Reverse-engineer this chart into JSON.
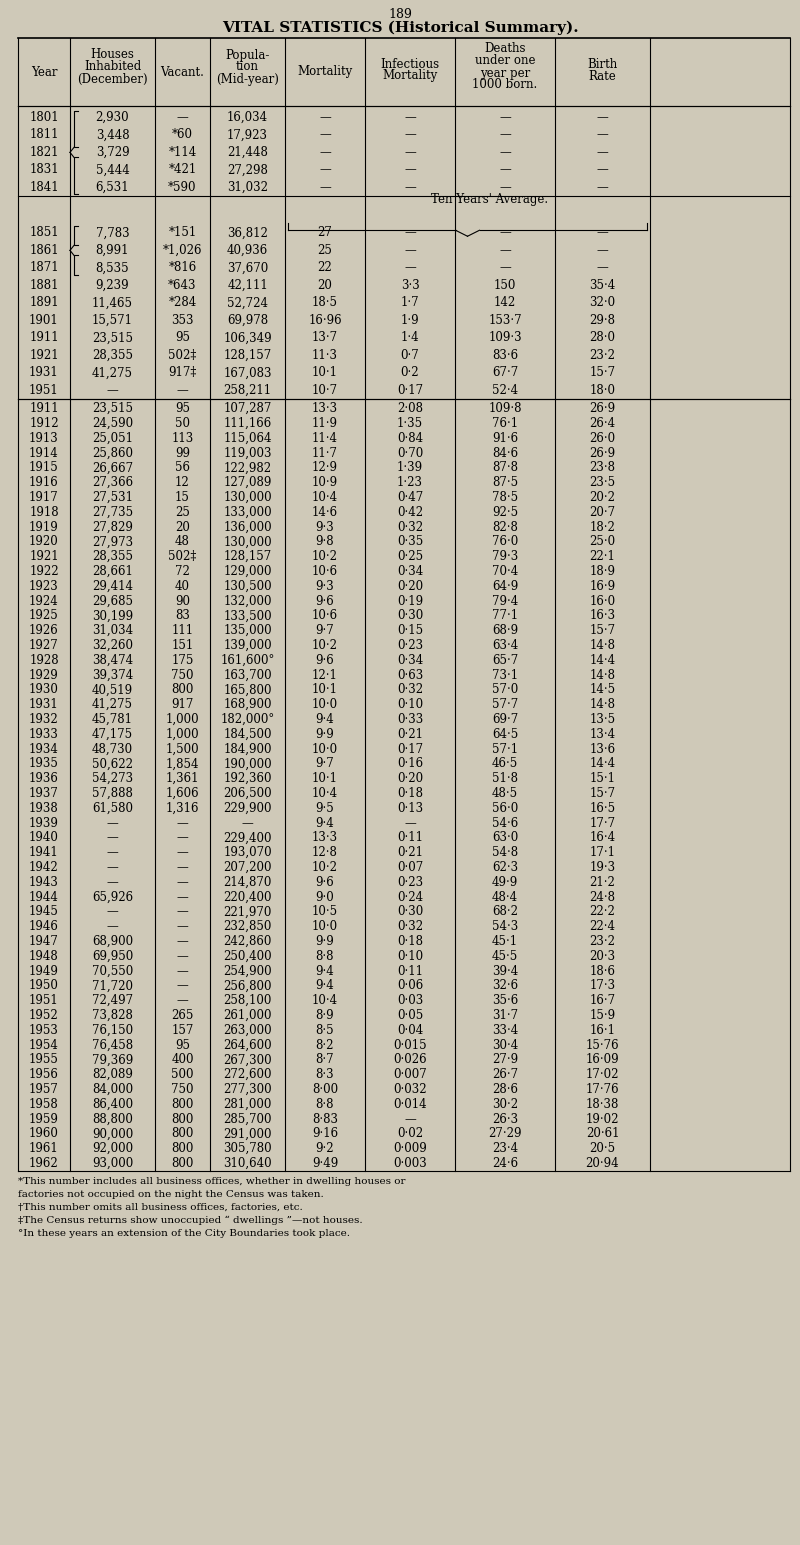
{
  "page_number": "189",
  "title": "VITAL STATISTICS (Historical Summary).",
  "bg_color": "#cfc9b8",
  "col_bounds": [
    18,
    70,
    155,
    210,
    285,
    365,
    455,
    555,
    650,
    790
  ],
  "header_lines": [
    [
      0,
      "Year"
    ],
    [
      1,
      "Houses\nInhabited\n(December)"
    ],
    [
      2,
      "Vacant."
    ],
    [
      3,
      "Popula-\ntion\n(Mid-year)"
    ],
    [
      4,
      "Mortality"
    ],
    [
      5,
      "Infectious\nMortality"
    ],
    [
      6,
      "Deaths\nunder one\nyear per\n1000 born."
    ],
    [
      7,
      "Birth\nRate"
    ]
  ],
  "dec_rows": [
    [
      "1801",
      "2,930",
      "—",
      "16,034",
      "—",
      "—",
      "—",
      "—"
    ],
    [
      "1811",
      "3,448",
      "*60",
      "17,923",
      "—",
      "—",
      "—",
      "—"
    ],
    [
      "1821",
      "3,729",
      "*114",
      "21,448",
      "—",
      "—",
      "—",
      "—"
    ],
    [
      "1831",
      "5,444",
      "*421",
      "27,298",
      "—",
      "—",
      "—",
      "—"
    ],
    [
      "1841",
      "6,531",
      "*590",
      "31,032",
      "—",
      "—",
      "—",
      "—"
    ],
    [
      "1851",
      "7,783",
      "*151",
      "36,812",
      "27",
      "—",
      "—",
      "—"
    ],
    [
      "1861",
      "8,991",
      "*1,026",
      "40,936",
      "25",
      "—",
      "—",
      "—"
    ],
    [
      "1871",
      "8,535",
      "*816",
      "37,670",
      "22",
      "—",
      "—",
      "—"
    ],
    [
      "1881",
      "9,239",
      "*643",
      "42,111",
      "20",
      "3·3",
      "150",
      "35·4"
    ],
    [
      "1891",
      "11,465",
      "*284",
      "52,724",
      "18·5",
      "1·7",
      "142",
      "32·0"
    ],
    [
      "1901",
      "15,571",
      "353",
      "69,978",
      "16·96",
      "1·9",
      "153·7",
      "29·8"
    ],
    [
      "1911",
      "23,515",
      "95",
      "106,349",
      "13·7",
      "1·4",
      "109·3",
      "28·0"
    ],
    [
      "1921",
      "28,355",
      "502‡",
      "128,157",
      "11·3",
      "0·7",
      "83·6",
      "23·2"
    ],
    [
      "1931",
      "41,275",
      "917‡",
      "167,083",
      "10·1",
      "0·2",
      "67·7",
      "15·7"
    ],
    [
      "1951",
      "—",
      "—",
      "258,211",
      "10·7",
      "0·17",
      "52·4",
      "18·0"
    ]
  ],
  "ann_rows": [
    [
      "1911",
      "23,515",
      "95",
      "107,287",
      "13·3",
      "2·08",
      "109·8",
      "26·9"
    ],
    [
      "1912",
      "24,590",
      "50",
      "111,166",
      "11·9",
      "1·35",
      "76·1",
      "26·4"
    ],
    [
      "1913",
      "25,051",
      "113",
      "115,064",
      "11·4",
      "0·84",
      "91·6",
      "26·0"
    ],
    [
      "1914",
      "25,860",
      "99",
      "119,003",
      "11·7",
      "0·70",
      "84·6",
      "26·9"
    ],
    [
      "1915",
      "26,667",
      "56",
      "122,982",
      "12·9",
      "1·39",
      "87·8",
      "23·8"
    ],
    [
      "1916",
      "27,366",
      "12",
      "127,089",
      "10·9",
      "1·23",
      "87·5",
      "23·5"
    ],
    [
      "1917",
      "27,531",
      "15",
      "130,000",
      "10·4",
      "0·47",
      "78·5",
      "20·2"
    ],
    [
      "1918",
      "27,735",
      "25",
      "133,000",
      "14·6",
      "0·42",
      "92·5",
      "20·7"
    ],
    [
      "1919",
      "27,829",
      "20",
      "136,000",
      "9·3",
      "0·32",
      "82·8",
      "18·2"
    ],
    [
      "1920",
      "27,973",
      "48",
      "130,000",
      "9·8",
      "0·35",
      "76·0",
      "25·0"
    ],
    [
      "1921",
      "28,355",
      "502‡",
      "128,157",
      "10·2",
      "0·25",
      "79·3",
      "22·1"
    ],
    [
      "1922",
      "28,661",
      "72",
      "129,000",
      "10·6",
      "0·34",
      "70·4",
      "18·9"
    ],
    [
      "1923",
      "29,414",
      "40",
      "130,500",
      "9·3",
      "0·20",
      "64·9",
      "16·9"
    ],
    [
      "1924",
      "29,685",
      "90",
      "132,000",
      "9·6",
      "0·19",
      "79·4",
      "16·0"
    ],
    [
      "1925",
      "30,199",
      "83",
      "133,500",
      "10·6",
      "0·30",
      "77·1",
      "16·3"
    ],
    [
      "1926",
      "31,034",
      "111",
      "135,000",
      "9·7",
      "0·15",
      "68·9",
      "15·7"
    ],
    [
      "1927",
      "32,260",
      "151",
      "139,000",
      "10·2",
      "0·23",
      "63·4",
      "14·8"
    ],
    [
      "1928",
      "38,474",
      "175",
      "161,600°",
      "9·6",
      "0·34",
      "65·7",
      "14·4"
    ],
    [
      "1929",
      "39,374",
      "750",
      "163,700",
      "12·1",
      "0·63",
      "73·1",
      "14·8"
    ],
    [
      "1930",
      "40,519",
      "800",
      "165,800",
      "10·1",
      "0·32",
      "57·0",
      "14·5"
    ],
    [
      "1931",
      "41,275",
      "917",
      "168,900",
      "10·0",
      "0·10",
      "57·7",
      "14·8"
    ],
    [
      "1932",
      "45,781",
      "1,000",
      "182,000°",
      "9·4",
      "0·33",
      "69·7",
      "13·5"
    ],
    [
      "1933",
      "47,175",
      "1,000",
      "184,500",
      "9·9",
      "0·21",
      "64·5",
      "13·4"
    ],
    [
      "1934",
      "48,730",
      "1,500",
      "184,900",
      "10·0",
      "0·17",
      "57·1",
      "13·6"
    ],
    [
      "1935",
      "50,622",
      "1,854",
      "190,000",
      "9·7",
      "0·16",
      "46·5",
      "14·4"
    ],
    [
      "1936",
      "54,273",
      "1,361",
      "192,360",
      "10·1",
      "0·20",
      "51·8",
      "15·1"
    ],
    [
      "1937",
      "57,888",
      "1,606",
      "206,500",
      "10·4",
      "0·18",
      "48·5",
      "15·7"
    ],
    [
      "1938",
      "61,580",
      "1,316",
      "229,900",
      "9·5",
      "0·13",
      "56·0",
      "16·5"
    ],
    [
      "1939",
      "—",
      "—",
      "—",
      "9·4",
      "—",
      "54·6",
      "17·7"
    ],
    [
      "1940",
      "—",
      "—",
      "229,400",
      "13·3",
      "0·11",
      "63·0",
      "16·4"
    ],
    [
      "1941",
      "—",
      "—",
      "193,070",
      "12·8",
      "0·21",
      "54·8",
      "17·1"
    ],
    [
      "1942",
      "—",
      "—",
      "207,200",
      "10·2",
      "0·07",
      "62·3",
      "19·3"
    ],
    [
      "1943",
      "—",
      "—",
      "214,870",
      "9·6",
      "0·23",
      "49·9",
      "21·2"
    ],
    [
      "1944",
      "65,926",
      "—",
      "220,400",
      "9·0",
      "0·24",
      "48·4",
      "24·8"
    ],
    [
      "1945",
      "—",
      "—",
      "221,970",
      "10·5",
      "0·30",
      "68·2",
      "22·2"
    ],
    [
      "1946",
      "—",
      "—",
      "232,850",
      "10·0",
      "0·32",
      "54·3",
      "22·4"
    ],
    [
      "1947",
      "68,900",
      "—",
      "242,860",
      "9·9",
      "0·18",
      "45·1",
      "23·2"
    ],
    [
      "1948",
      "69,950",
      "—",
      "250,400",
      "8·8",
      "0·10",
      "45·5",
      "20·3"
    ],
    [
      "1949",
      "70,550",
      "—",
      "254,900",
      "9·4",
      "0·11",
      "39·4",
      "18·6"
    ],
    [
      "1950",
      "71,720",
      "—",
      "256,800",
      "9·4",
      "0·06",
      "32·6",
      "17·3"
    ],
    [
      "1951",
      "72,497",
      "—",
      "258,100",
      "10·4",
      "0·03",
      "35·6",
      "16·7"
    ],
    [
      "1952",
      "73,828",
      "265",
      "261,000",
      "8·9",
      "0·05",
      "31·7",
      "15·9"
    ],
    [
      "1953",
      "76,150",
      "157",
      "263,000",
      "8·5",
      "0·04",
      "33·4",
      "16·1"
    ],
    [
      "1954",
      "76,458",
      "95",
      "264,600",
      "8·2",
      "0·015",
      "30·4",
      "15·76"
    ],
    [
      "1955",
      "79,369",
      "400",
      "267,300",
      "8·7",
      "0·026",
      "27·9",
      "16·09"
    ],
    [
      "1956",
      "82,089",
      "500",
      "272,600",
      "8·3",
      "0·007",
      "26·7",
      "17·02"
    ],
    [
      "1957",
      "84,000",
      "750",
      "277,300",
      "8·00",
      "0·032",
      "28·6",
      "17·76"
    ],
    [
      "1958",
      "86,400",
      "800",
      "281,000",
      "8·8",
      "0·014",
      "30·2",
      "18·38"
    ],
    [
      "1959",
      "88,800",
      "800",
      "285,700",
      "8·83",
      "—",
      "26·3",
      "19·02"
    ],
    [
      "1960",
      "90,000",
      "800",
      "291,000",
      "9·16",
      "0·02",
      "27·29",
      "20·61"
    ],
    [
      "1961",
      "92,000",
      "800",
      "305,780",
      "9·2",
      "0·009",
      "23·4",
      "20·5"
    ],
    [
      "1962",
      "93,000",
      "800",
      "310,640",
      "9·49",
      "0·003",
      "24·6",
      "20·94"
    ]
  ],
  "footnotes": [
    "*This number includes all business offices, whether in dwelling houses or",
    "factories not occupied on the night the Census was taken.",
    "†This number omits all business offices, factories, etc.",
    "‡The Census returns show unoccupied “ dwellings ”—not houses.",
    "°In these years an extension of the City Boundaries took place."
  ]
}
